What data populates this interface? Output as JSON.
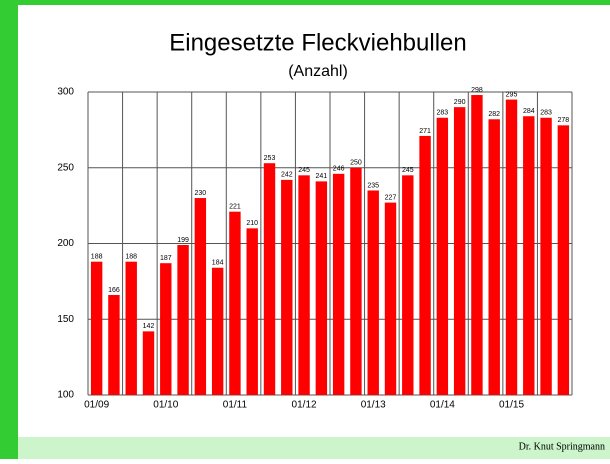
{
  "chart_data": {
    "type": "bar",
    "title": "Eingesetzte Fleckviehbullen",
    "subtitle": "(Anzahl)",
    "categories": [
      "01/09",
      null,
      null,
      null,
      "01/10",
      null,
      null,
      null,
      "01/11",
      null,
      null,
      null,
      "01/12",
      null,
      null,
      null,
      "01/13",
      null,
      null,
      null,
      "01/14",
      null,
      null,
      null,
      "01/15",
      null,
      null,
      null
    ],
    "values": [
      188,
      166,
      188,
      142,
      187,
      199,
      230,
      184,
      221,
      210,
      253,
      242,
      245,
      241,
      246,
      250,
      235,
      227,
      245,
      271,
      283,
      290,
      298,
      282,
      295,
      284,
      283,
      278
    ],
    "color": "#ff0000",
    "ylim": [
      100,
      300
    ],
    "yticks": [
      100,
      150,
      200,
      250,
      300
    ],
    "grid": true
  },
  "footer": "Dr. Knut Springmann"
}
